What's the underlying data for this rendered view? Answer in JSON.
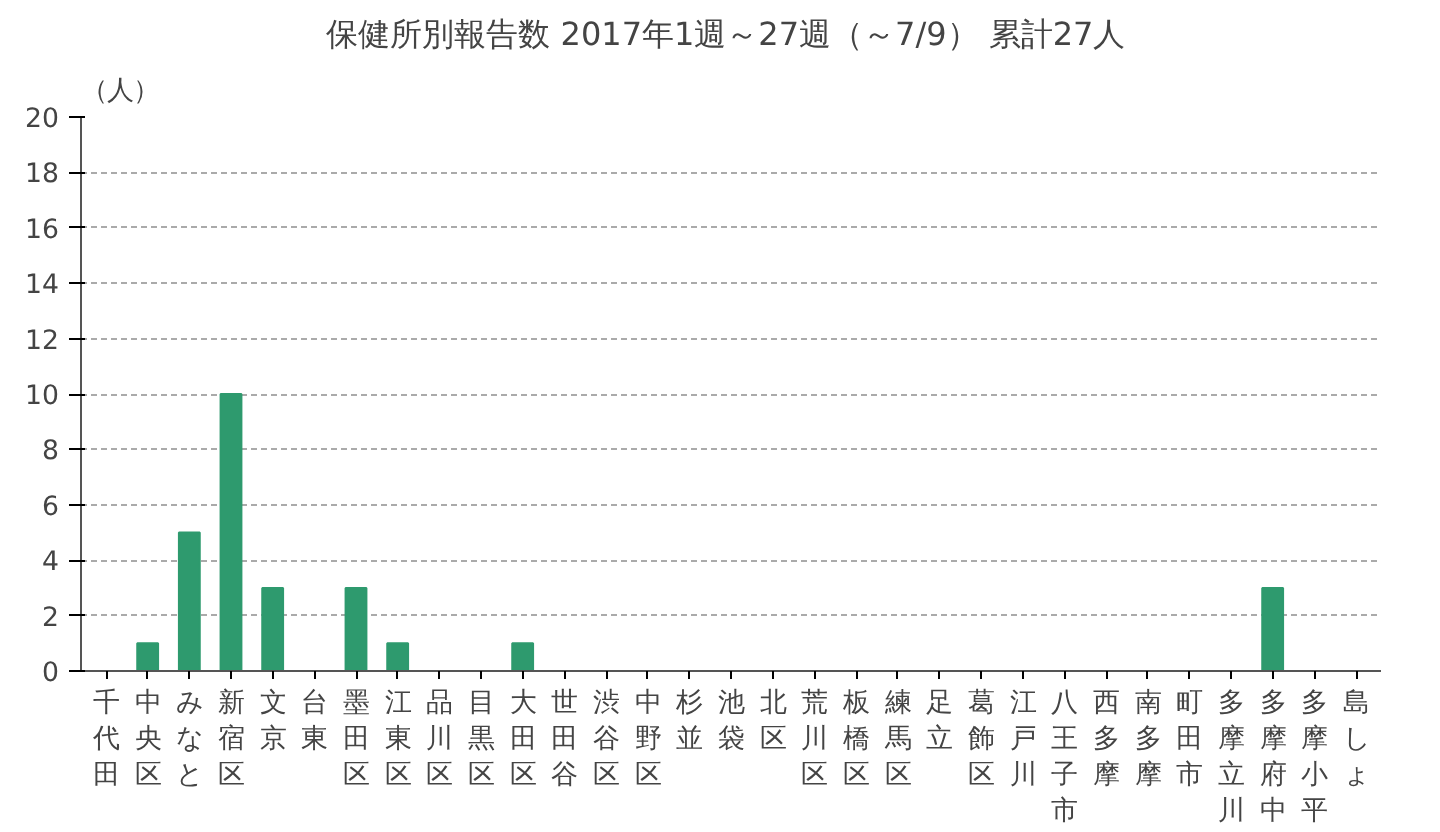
{
  "chart_data": {
    "type": "bar",
    "title": "保健所別報告数  2017年1週～27週（～7/9） 累計27人",
    "ylabel": "（人）",
    "categories": [
      "千代田",
      "中央区",
      "みなと",
      "新宿区",
      "文京",
      "台東",
      "墨田区",
      "江東区",
      "品川区",
      "目黒区",
      "大田区",
      "世田谷",
      "渋谷区",
      "中野区",
      "杉並",
      "池袋",
      "北区",
      "荒川区",
      "板橋区",
      "練馬区",
      "足立",
      "葛飾区",
      "江戸川",
      "八王子市",
      "西多摩",
      "南多摩",
      "町田市",
      "多摩立川",
      "多摩府中",
      "多摩小平",
      "島しょ"
    ],
    "values": [
      0,
      1,
      5,
      10,
      3,
      0,
      3,
      1,
      0,
      0,
      1,
      0,
      0,
      0,
      0,
      0,
      0,
      0,
      0,
      0,
      0,
      0,
      0,
      0,
      0,
      0,
      0,
      0,
      3,
      0,
      0
    ],
    "color": "#2e9a6e",
    "ylim": [
      0,
      20
    ],
    "yticks": [
      0,
      2,
      4,
      6,
      8,
      10,
      12,
      14,
      16,
      18,
      20
    ],
    "grid": "y"
  }
}
